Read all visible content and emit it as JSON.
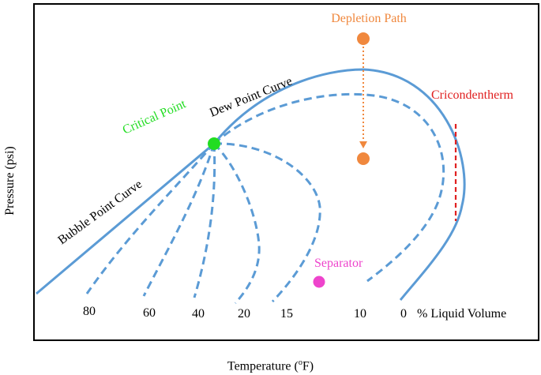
{
  "axes": {
    "y_label": "Pressure (psi)",
    "x_label_prefix": "Temperature (",
    "x_label_sup": "o",
    "x_label_suffix": "F)"
  },
  "annotations": {
    "depletion_path": "Depletion Path",
    "critical_point": "Critical Point",
    "dew_point_curve": "Dew Point Curve",
    "bubble_point_curve": "Bubble Point Curve",
    "cricondentherm": "Cricondentherm",
    "separator": "Separator",
    "liquid_volume_unit": "% Liquid Volume"
  },
  "quality_lines": [
    "80",
    "60",
    "40",
    "20",
    "15",
    "10",
    "0"
  ],
  "colors": {
    "curve": "#5b9bd5",
    "critical_point": "#22dd22",
    "depletion": "#f0883e",
    "separator": "#ee44cc",
    "cricondentherm": "#e02020",
    "frame": "#000000"
  }
}
